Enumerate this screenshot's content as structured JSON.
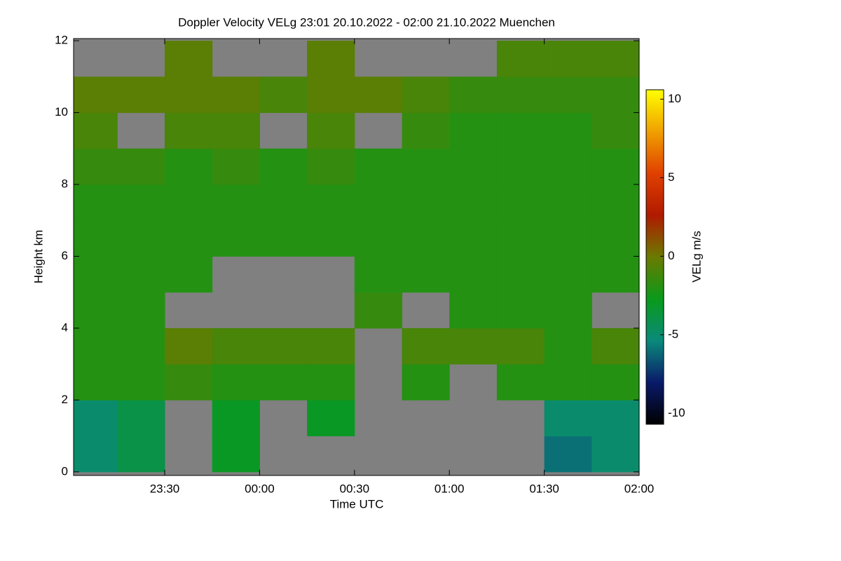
{
  "chart_data": {
    "type": "heatmap",
    "title": "Doppler Velocity VELg   23:01 20.10.2022 - 02:00 21.10.2022 Muenchen",
    "xlabel": "Time UTC",
    "ylabel": "Height km",
    "colorbar_label": "VELg m/s",
    "x": [
      23.125,
      23.375,
      23.625,
      23.875,
      24.125,
      24.375,
      24.625,
      24.875,
      25.125,
      25.375,
      25.625,
      25.875
    ],
    "y": [
      0.5,
      1.5,
      2.5,
      3.5,
      4.5,
      5.5,
      6.5,
      7.5,
      8.5,
      9.5,
      10.5,
      11.5
    ],
    "z": [
      [
        -5,
        -4,
        null,
        -3,
        null,
        null,
        null,
        null,
        null,
        null,
        -6,
        -5
      ],
      [
        -5,
        -4,
        null,
        -3,
        null,
        -3,
        null,
        null,
        null,
        null,
        -5,
        -5
      ],
      [
        -2,
        -2,
        -1.5,
        -2,
        -2,
        -2,
        null,
        -2,
        null,
        -2,
        -2,
        -2
      ],
      [
        -2,
        -2,
        -0.5,
        -1,
        -1,
        -1,
        null,
        -1,
        -1,
        -1,
        -2,
        -1
      ],
      [
        -2,
        -2,
        null,
        null,
        null,
        null,
        -1.5,
        null,
        -2,
        -2,
        -2,
        null
      ],
      [
        -2,
        -2,
        -2,
        null,
        null,
        null,
        -2,
        -2,
        -2,
        -2,
        -2,
        -2
      ],
      [
        -2,
        -2,
        -2,
        -2,
        -2,
        -2,
        -2,
        -2,
        -2,
        -2,
        -2,
        -2
      ],
      [
        -2,
        -2,
        -2,
        -2,
        -2,
        -2,
        -2,
        -2,
        -2,
        -2,
        -2,
        -2
      ],
      [
        -1.5,
        -1.5,
        -2,
        -1.5,
        -2,
        -1.5,
        -2,
        -2,
        -2,
        -2,
        -2,
        -2
      ],
      [
        -1,
        null,
        -1,
        -1,
        null,
        -1,
        null,
        -1.5,
        -2,
        -2,
        -2,
        -1.5
      ],
      [
        -0.5,
        -0.5,
        -0.5,
        -0.5,
        -1,
        -0.5,
        -0.5,
        -1,
        -1.5,
        -1.5,
        -1.5,
        -1.5
      ],
      [
        null,
        null,
        -0.5,
        null,
        null,
        -0.5,
        null,
        null,
        null,
        -1,
        -1,
        -1
      ]
    ],
    "xlim": [
      23.02,
      26.0
    ],
    "xticks": [
      {
        "value": 23.5,
        "label": "23:30"
      },
      {
        "value": 24.0,
        "label": "00:00"
      },
      {
        "value": 24.5,
        "label": "00:30"
      },
      {
        "value": 25.0,
        "label": "01:00"
      },
      {
        "value": 25.5,
        "label": "01:30"
      },
      {
        "value": 26.0,
        "label": "02:00"
      }
    ],
    "ylim": [
      -0.1,
      12.06
    ],
    "yticks": [
      0,
      2,
      4,
      6,
      8,
      10,
      12
    ],
    "zlim": [
      -10.7,
      10.6
    ],
    "zticks": [
      -10,
      -5,
      0,
      5,
      10
    ],
    "colormap": [
      "#000000",
      "#0a1a6a",
      "#0a8a7a",
      "#0a9a1a",
      "#6a7a00",
      "#b01a00",
      "#e04000",
      "#f0a000",
      "#ffff00"
    ],
    "missing_color": "#808080"
  }
}
